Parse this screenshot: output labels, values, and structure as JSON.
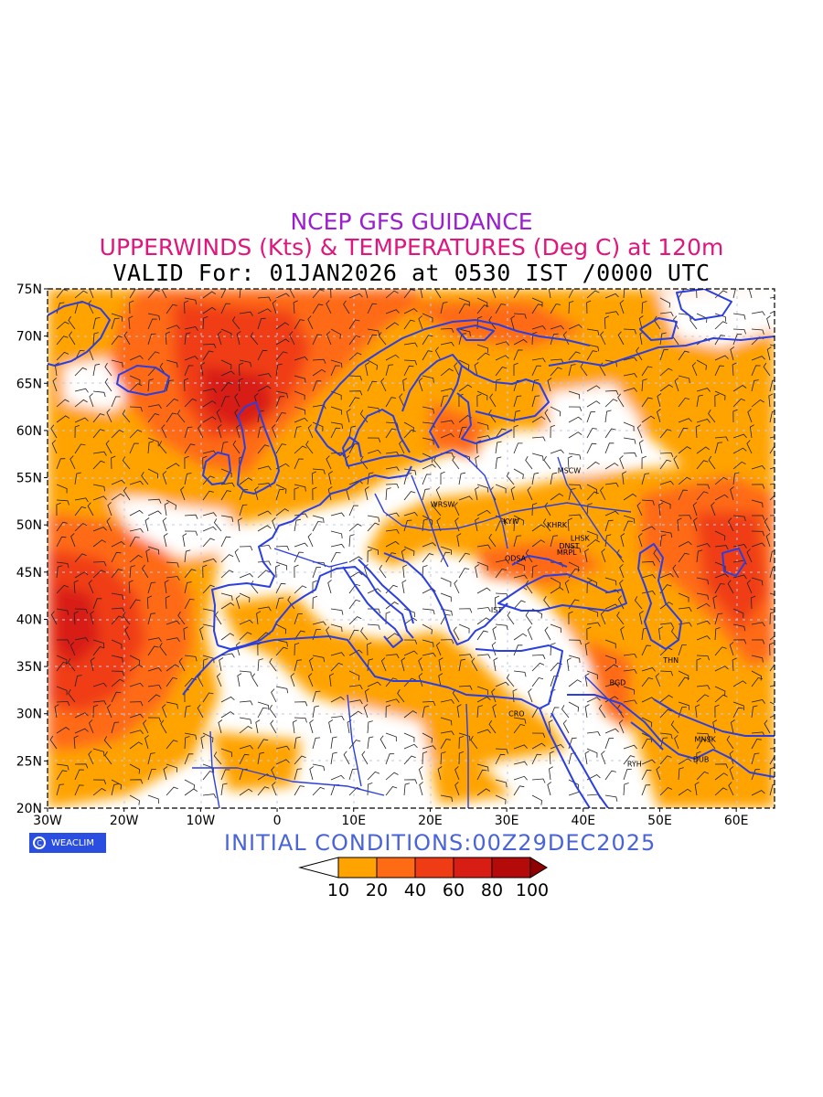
{
  "titles": {
    "line1": "NCEP GFS GUIDANCE",
    "line2": "UPPERWINDS (Kts) & TEMPERATURES (Deg C) at 120m",
    "line3": "VALID For: 01JAN2026 at 0530 IST /0000 UTC"
  },
  "colors": {
    "title1": "#9b1fcf",
    "title2": "#e0167d",
    "title3": "#000000",
    "coastline": "#2b3fe0",
    "init": "#4a64d8",
    "shade_10_20": "#ffa300",
    "shade_20_40": "#ff6a14",
    "shade_40_60": "#f03c14",
    "shade_60_80": "#d81e14",
    "shade_80_100": "#b40a0a",
    "shade_100_plus": "#900000"
  },
  "axes": {
    "lat_labels": [
      "75N",
      "70N",
      "65N",
      "60N",
      "55N",
      "50N",
      "45N",
      "40N",
      "35N",
      "30N",
      "25N",
      "20N"
    ],
    "lon_labels": [
      "30W",
      "20W",
      "10W",
      "0",
      "10E",
      "20E",
      "30E",
      "40E",
      "50E",
      "60E"
    ],
    "lat_range": [
      20,
      75
    ],
    "lon_range": [
      -30,
      65
    ]
  },
  "stations": [
    {
      "name": "MSCW",
      "lon": 37.6,
      "lat": 55.8
    },
    {
      "name": "WRSW",
      "lon": 21.0,
      "lat": 52.2
    },
    {
      "name": "KYIV",
      "lon": 30.5,
      "lat": 50.4
    },
    {
      "name": "KHRK",
      "lon": 36.2,
      "lat": 50.0
    },
    {
      "name": "LHSK",
      "lon": 39.3,
      "lat": 48.6
    },
    {
      "name": "DNST",
      "lon": 37.8,
      "lat": 47.8
    },
    {
      "name": "MRPL",
      "lon": 37.5,
      "lat": 47.1
    },
    {
      "name": "ODSA",
      "lon": 30.7,
      "lat": 46.5
    },
    {
      "name": "IST",
      "lon": 28.9,
      "lat": 41.0
    },
    {
      "name": "THN",
      "lon": 51.4,
      "lat": 35.7
    },
    {
      "name": "BGD",
      "lon": 44.4,
      "lat": 33.3
    },
    {
      "name": "CRO",
      "lon": 31.2,
      "lat": 30.0
    },
    {
      "name": "MNSK",
      "lon": 55.5,
      "lat": 27.3
    },
    {
      "name": "RYH",
      "lon": 46.7,
      "lat": 24.7
    },
    {
      "name": "DUB",
      "lon": 55.3,
      "lat": 25.2
    }
  ],
  "branding": {
    "logo_text": "WEACLIM"
  },
  "initial_conditions": "INITIAL CONDITIONS:00Z29DEC2025",
  "legend": {
    "labels": [
      "10",
      "20",
      "40",
      "60",
      "80",
      "100"
    ]
  }
}
